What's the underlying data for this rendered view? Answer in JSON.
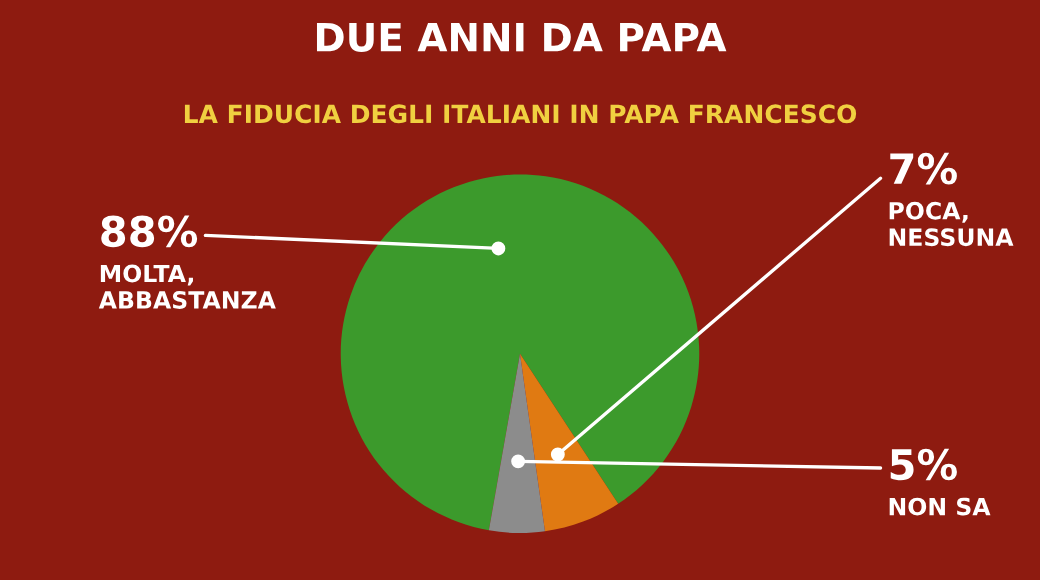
{
  "chart_data": {
    "type": "pie",
    "title": "DUE ANNI DA PAPA",
    "subtitle": "LA FIDUCIA DEGLI ITALIANI IN PAPA FRANCESCO",
    "categories": [
      "MOLTA,\nABBASTANZA",
      "POCA,\nNESSUNA",
      "NON SA"
    ],
    "values": [
      88,
      7,
      5
    ],
    "colors": [
      "#3c9a2c",
      "#e07a12",
      "#8c8c8c"
    ],
    "value_labels": [
      "88%",
      "7%",
      "5%"
    ],
    "legend": false
  }
}
